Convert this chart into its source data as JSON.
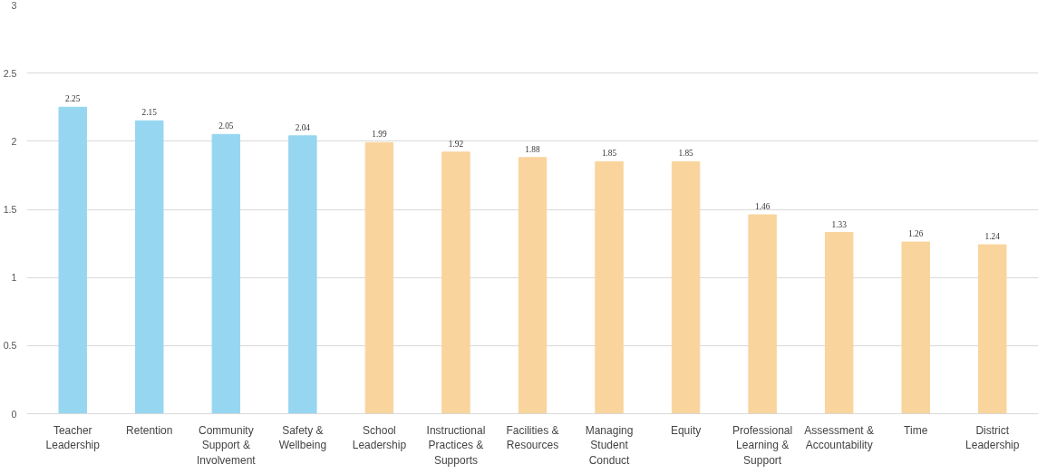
{
  "chart_data": {
    "type": "bar",
    "categories": [
      "Teacher Leadership",
      "Retention",
      "Community Support & Involvement",
      "Safety & Wellbeing",
      "School Leadership",
      "Instructional Practices & Supports",
      "Facilities & Resources",
      "Managing Student Conduct",
      "Equity",
      "Professional Learning & Support",
      "Assessment & Accountability",
      "Time",
      "District Leadership"
    ],
    "values": [
      2.25,
      2.15,
      2.05,
      2.04,
      1.99,
      1.92,
      1.88,
      1.85,
      1.85,
      1.46,
      1.33,
      1.26,
      1.24
    ],
    "colors": [
      "#97d6f1",
      "#97d6f1",
      "#97d6f1",
      "#97d6f1",
      "#f9d49c",
      "#f9d49c",
      "#f9d49c",
      "#f9d49c",
      "#f9d49c",
      "#f9d49c",
      "#f9d49c",
      "#f9d49c",
      "#f9d49c"
    ],
    "ylim": [
      0,
      3
    ],
    "yticks": [
      0,
      0.5,
      1,
      1.5,
      2,
      2.5,
      3
    ],
    "grid": "y",
    "data_labels": true
  }
}
